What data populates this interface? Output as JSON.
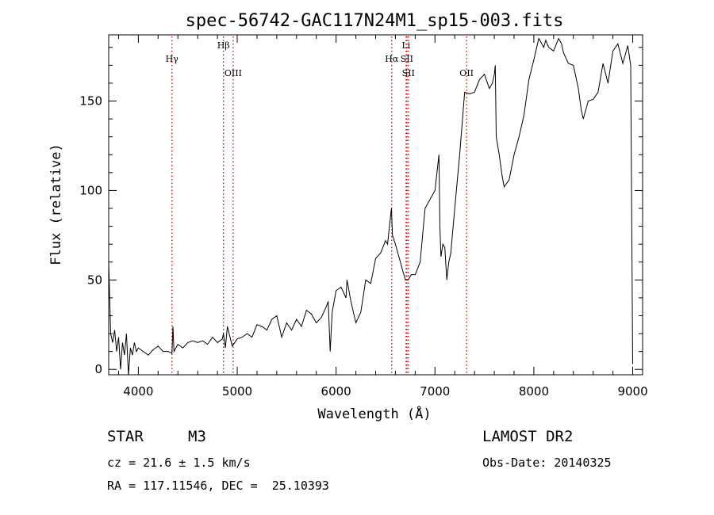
{
  "chart_data": {
    "type": "line",
    "title": "spec-56742-GAC117N24M1_sp15-003.fits",
    "xlabel": "Wavelength (Å)",
    "ylabel": "Flux (relative)",
    "xlim": [
      3700,
      9100
    ],
    "ylim": [
      -3,
      187
    ],
    "xticks": [
      4000,
      5000,
      6000,
      7000,
      8000,
      9000
    ],
    "yticks": [
      0,
      50,
      100,
      150
    ],
    "series_color": "#000000",
    "line_marker_color": "#cc0000",
    "series": [
      {
        "x": [
          3700,
          3720,
          3740,
          3760,
          3780,
          3800,
          3820,
          3840,
          3860,
          3880,
          3900,
          3920,
          3940,
          3960,
          3980,
          4000,
          4050,
          4100,
          4150,
          4200,
          4250,
          4300,
          4340,
          4350,
          4360,
          4400,
          4450,
          4500,
          4550,
          4600,
          4650,
          4700,
          4750,
          4800,
          4850,
          4860,
          4880,
          4900,
          4950,
          5000,
          5050,
          5100,
          5150,
          5200,
          5250,
          5300,
          5350,
          5400,
          5450,
          5500,
          5550,
          5600,
          5650,
          5700,
          5750,
          5800,
          5850,
          5900,
          5920,
          5940,
          5960,
          6000,
          6050,
          6100,
          6110,
          6150,
          6200,
          6250,
          6300,
          6350,
          6400,
          6450,
          6500,
          6520,
          6540,
          6560,
          6570,
          6600,
          6650,
          6700,
          6730,
          6760,
          6800,
          6850,
          6900,
          6950,
          7000,
          7040,
          7050,
          7060,
          7080,
          7100,
          7120,
          7140,
          7160,
          7200,
          7250,
          7300,
          7350,
          7400,
          7450,
          7500,
          7550,
          7580,
          7600,
          7610,
          7620,
          7650,
          7680,
          7700,
          7750,
          7800,
          7850,
          7900,
          7950,
          8000,
          8050,
          8100,
          8120,
          8150,
          8200,
          8250,
          8280,
          8300,
          8350,
          8400,
          8450,
          8480,
          8500,
          8550,
          8600,
          8650,
          8700,
          8750,
          8800,
          8850,
          8900,
          8950,
          8980,
          9000
        ],
        "y": [
          60,
          20,
          15,
          22,
          10,
          18,
          0,
          15,
          8,
          20,
          -3,
          12,
          8,
          15,
          10,
          12,
          10,
          8,
          11,
          13,
          10,
          10,
          9,
          24,
          10,
          14,
          12,
          15,
          16,
          15,
          16,
          14,
          18,
          15,
          17,
          20,
          12,
          24,
          13,
          17,
          18,
          20,
          18,
          25,
          24,
          22,
          28,
          30,
          18,
          26,
          22,
          28,
          24,
          33,
          31,
          26,
          29,
          35,
          38,
          10,
          32,
          44,
          46,
          40,
          50,
          38,
          26,
          32,
          50,
          48,
          62,
          65,
          72,
          70,
          80,
          90,
          75,
          70,
          60,
          50,
          50,
          53,
          53,
          60,
          90,
          95,
          100,
          120,
          80,
          63,
          70,
          68,
          50,
          60,
          65,
          90,
          120,
          155,
          154,
          155,
          162,
          165,
          157,
          160,
          165,
          170,
          130,
          120,
          108,
          102,
          106,
          120,
          130,
          142,
          162,
          173,
          185,
          180,
          184,
          180,
          178,
          185,
          182,
          177,
          171,
          170,
          157,
          145,
          140,
          150,
          151,
          155,
          171,
          160,
          178,
          182,
          171,
          181,
          170,
          3
        ]
      }
    ],
    "lines": [
      {
        "label": "Hγ",
        "x": 4340,
        "row": 2
      },
      {
        "label": "Hβ",
        "x": 4861,
        "row": 1
      },
      {
        "label": "OIII",
        "x": 4959,
        "row": 3
      },
      {
        "label": "Hα",
        "x": 6563,
        "row": 2
      },
      {
        "label": "Li",
        "x": 6708,
        "row": 1
      },
      {
        "label": "SII",
        "x": 6716,
        "row": 2
      },
      {
        "label": "SII",
        "x": 6731,
        "row": 3
      },
      {
        "label": "OII",
        "x": 7320,
        "row": 3
      }
    ]
  },
  "info": {
    "class": "STAR",
    "subclass": "M3",
    "cz": "cz = 21.6 ± 1.5 km/s",
    "coords": "RA = 117.11546, DEC =  25.10393",
    "survey": "LAMOST DR2",
    "obsdate": "Obs-Date: 20140325"
  }
}
